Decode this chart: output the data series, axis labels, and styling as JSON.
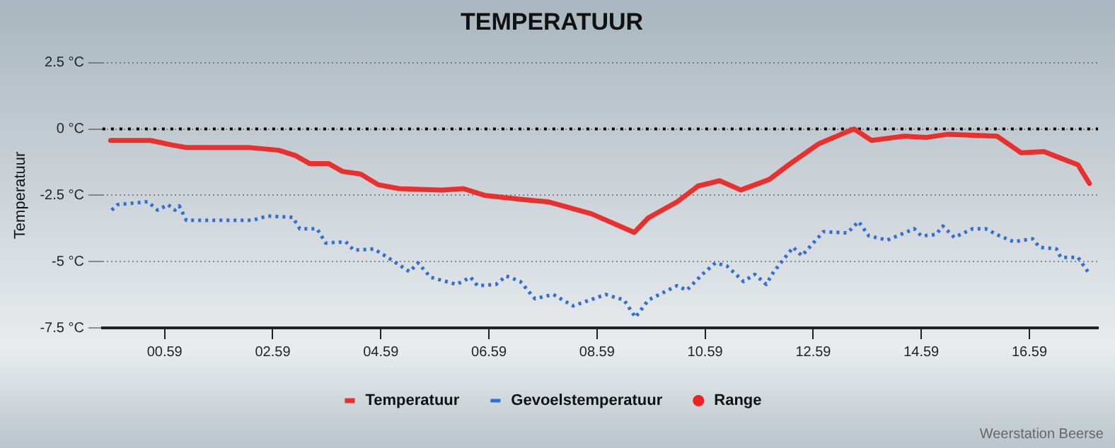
{
  "chart_data": {
    "type": "line",
    "title": "TEMPERATUUR",
    "ylabel": "Temperatuur",
    "xlim": [
      -0.56,
      17.86
    ],
    "xticks": [
      {
        "value": 0.59,
        "label": "00.59"
      },
      {
        "value": 2.59,
        "label": "02.59"
      },
      {
        "value": 4.59,
        "label": "04.59"
      },
      {
        "value": 6.59,
        "label": "06.59"
      },
      {
        "value": 8.59,
        "label": "08.59"
      },
      {
        "value": 10.59,
        "label": "10.59"
      },
      {
        "value": 12.59,
        "label": "12.59"
      },
      {
        "value": 14.59,
        "label": "14.59"
      },
      {
        "value": 16.59,
        "label": "16.59"
      }
    ],
    "ylim": [
      -7.5,
      2.5
    ],
    "yticks": [
      {
        "value": -7.5,
        "label": "-7.5 °C"
      },
      {
        "value": -5,
        "label": "-5 °C"
      },
      {
        "value": -2.5,
        "label": "-2.5 °C"
      },
      {
        "value": 0,
        "label": "0 °C"
      },
      {
        "value": 2.5,
        "label": "2.5 °C"
      }
    ],
    "grid": "y",
    "legend": "bottom",
    "marker": "none",
    "ref_lines": [
      {
        "axis": "y",
        "value": 0,
        "color": "#000000",
        "line_style": "dotted"
      }
    ],
    "annotations": [
      "Weerstation Beerse"
    ],
    "series": [
      {
        "name": "Temperatuur",
        "type": "line",
        "color": "#e8302e",
        "line_style": "solid",
        "x": [
          -0.41,
          0.33,
          0.72,
          0.99,
          2.17,
          2.7,
          3.01,
          3.27,
          3.62,
          3.88,
          4.22,
          4.54,
          4.93,
          5.72,
          6.12,
          6.51,
          7.17,
          7.7,
          8.49,
          9.28,
          9.54,
          10.07,
          10.46,
          10.86,
          11.25,
          11.78,
          12.17,
          12.7,
          13.22,
          13.35,
          13.67,
          14.28,
          14.67,
          15.07,
          15.99,
          16.44,
          16.86,
          17.17,
          17.49,
          17.7
        ],
        "values": [
          -0.43,
          -0.43,
          -0.6,
          -0.7,
          -0.7,
          -0.8,
          -1.0,
          -1.3,
          -1.3,
          -1.6,
          -1.7,
          -2.1,
          -2.25,
          -2.3,
          -2.25,
          -2.5,
          -2.65,
          -2.75,
          -3.2,
          -3.9,
          -3.35,
          -2.75,
          -2.15,
          -1.95,
          -2.3,
          -1.9,
          -1.3,
          -0.55,
          -0.1,
          0.0,
          -0.43,
          -0.27,
          -0.32,
          -0.2,
          -0.27,
          -0.9,
          -0.85,
          -1.1,
          -1.35,
          -2.05
        ]
      },
      {
        "name": "Gevoelstemperatuur",
        "type": "line",
        "color": "#2f6fd6",
        "line_style": "dotted",
        "x": [
          -0.39,
          -0.28,
          0.28,
          0.46,
          0.65,
          0.78,
          0.86,
          0.99,
          1.46,
          2.22,
          2.49,
          2.96,
          3.09,
          3.41,
          3.57,
          3.94,
          4.09,
          4.46,
          4.8,
          5.12,
          5.28,
          5.51,
          5.99,
          6.25,
          6.38,
          6.72,
          6.91,
          7.17,
          7.44,
          7.78,
          8.15,
          8.75,
          9.09,
          9.3,
          9.54,
          10.07,
          10.25,
          10.54,
          10.78,
          10.99,
          11.3,
          11.51,
          11.72,
          11.86,
          12.22,
          12.38,
          12.78,
          13.22,
          13.43,
          13.62,
          13.96,
          14.46,
          14.59,
          14.86,
          14.99,
          15.2,
          15.54,
          15.78,
          16.04,
          16.3,
          16.65,
          16.78,
          17.09,
          17.17,
          17.49,
          17.67
        ],
        "values": [
          -3.06,
          -2.85,
          -2.74,
          -3.06,
          -2.85,
          -3.06,
          -2.9,
          -3.44,
          -3.44,
          -3.44,
          -3.28,
          -3.33,
          -3.76,
          -3.76,
          -4.3,
          -4.25,
          -4.57,
          -4.52,
          -4.95,
          -5.38,
          -5.05,
          -5.59,
          -5.86,
          -5.59,
          -5.91,
          -5.86,
          -5.54,
          -5.75,
          -6.4,
          -6.24,
          -6.67,
          -6.24,
          -6.45,
          -7.1,
          -6.45,
          -5.91,
          -6.08,
          -5.48,
          -5.05,
          -5.16,
          -5.75,
          -5.48,
          -5.86,
          -5.38,
          -4.46,
          -4.78,
          -3.87,
          -3.92,
          -3.49,
          -4.03,
          -4.19,
          -3.76,
          -4.03,
          -3.98,
          -3.66,
          -4.09,
          -3.76,
          -3.76,
          -4.03,
          -4.25,
          -4.14,
          -4.46,
          -4.52,
          -4.84,
          -4.84,
          -5.38
        ]
      },
      {
        "name": "Range",
        "type": "scatter",
        "color": "#ee2222"
      }
    ]
  }
}
